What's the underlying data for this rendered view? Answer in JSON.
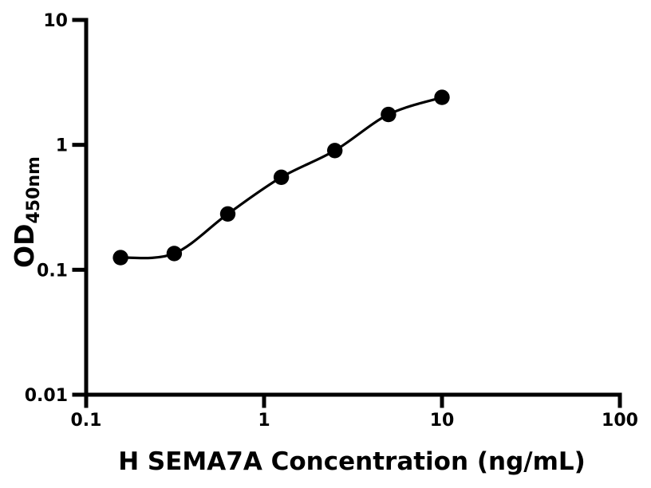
{
  "figure": {
    "background": "#ffffff",
    "foreground": "#000000"
  },
  "chart_data": {
    "type": "scatter",
    "title": "",
    "xlabel": "H SEMA7A Concentration (ng/mL)",
    "ylabel_main": "OD",
    "ylabel_sub": "450nm",
    "x_scale": "log",
    "y_scale": "log",
    "xlim": [
      0.1,
      100
    ],
    "ylim": [
      0.01,
      10
    ],
    "x_tick_labels": [
      "0.1",
      "1",
      "10",
      "100"
    ],
    "y_tick_labels": [
      "0.01",
      "0.1",
      "1",
      "10"
    ],
    "grid": false,
    "legend": false,
    "series": [
      {
        "name": "standard-curve",
        "x": [
          0.156,
          0.3125,
          0.625,
          1.25,
          2.5,
          5,
          10
        ],
        "y": [
          0.125,
          0.135,
          0.28,
          0.55,
          0.9,
          1.75,
          2.4
        ],
        "marker": "filled-circle",
        "marker_color": "#000000",
        "line_color": "#000000",
        "fit": "sigmoidal-dose-response"
      }
    ]
  }
}
